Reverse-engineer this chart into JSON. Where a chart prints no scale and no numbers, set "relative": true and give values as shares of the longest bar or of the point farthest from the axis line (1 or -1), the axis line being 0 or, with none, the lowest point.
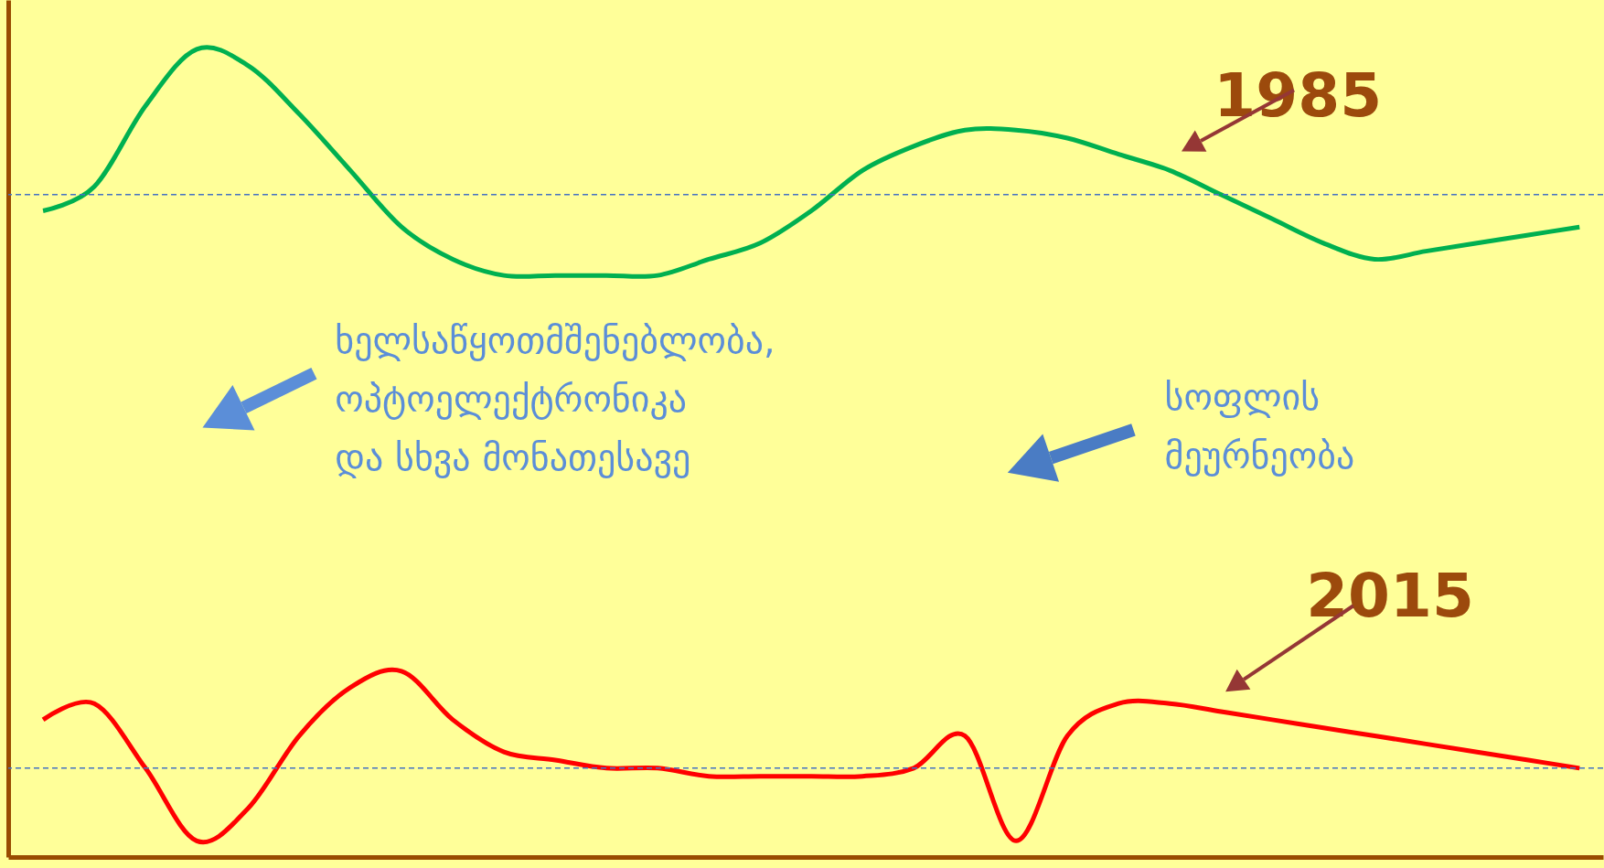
{
  "chart_data": {
    "type": "line",
    "relative": true,
    "categories": [
      null,
      null,
      null,
      null,
      null,
      null,
      null,
      null,
      null,
      null,
      null,
      null,
      null,
      null,
      null,
      null,
      null,
      null,
      null,
      null,
      null,
      null,
      null,
      null,
      null,
      null,
      null,
      null,
      null,
      null,
      null
    ],
    "series": [
      {
        "name": "1985",
        "color": "#00b050",
        "values": [
          0.8,
          0.83,
          0.93,
          1,
          0.98,
          0.92,
          0.85,
          0.78,
          0.74,
          0.72,
          0.72,
          0.72,
          0.72,
          0.74,
          0.76,
          0.8,
          0.85,
          0.88,
          0.9,
          0.9,
          0.89,
          0.87,
          0.85,
          0.82,
          0.79,
          0.76,
          0.74,
          0.75,
          0.76,
          0.77,
          0.78
        ]
      },
      {
        "name": "2015",
        "color": "#ff0000",
        "values": [
          0.17,
          0.19,
          0.11,
          0.02,
          0.06,
          0.15,
          0.21,
          0.23,
          0.17,
          0.13,
          0.12,
          0.11,
          0.11,
          0.1,
          0.1,
          0.1,
          0.1,
          0.11,
          0.15,
          0.02,
          0.15,
          0.19,
          0.19,
          0.18,
          0.17,
          0.16,
          0.15,
          0.14,
          0.13,
          0.12,
          0.11
        ]
      }
    ],
    "ref_lines": [
      {
        "axis": "y",
        "value": 0.82,
        "color": "#4472c4",
        "line_style": "dashed"
      },
      {
        "axis": "y",
        "value": 0.11,
        "color": "#4472c4",
        "line_style": "dashed"
      }
    ],
    "annotations": [
      "ხელსაწყოთმშენებლობა,\nოპტოელექტრონიკა\nდა სხვა მონათესავე",
      "სოფლის\nმეურნეობა"
    ],
    "grid": false
  }
}
